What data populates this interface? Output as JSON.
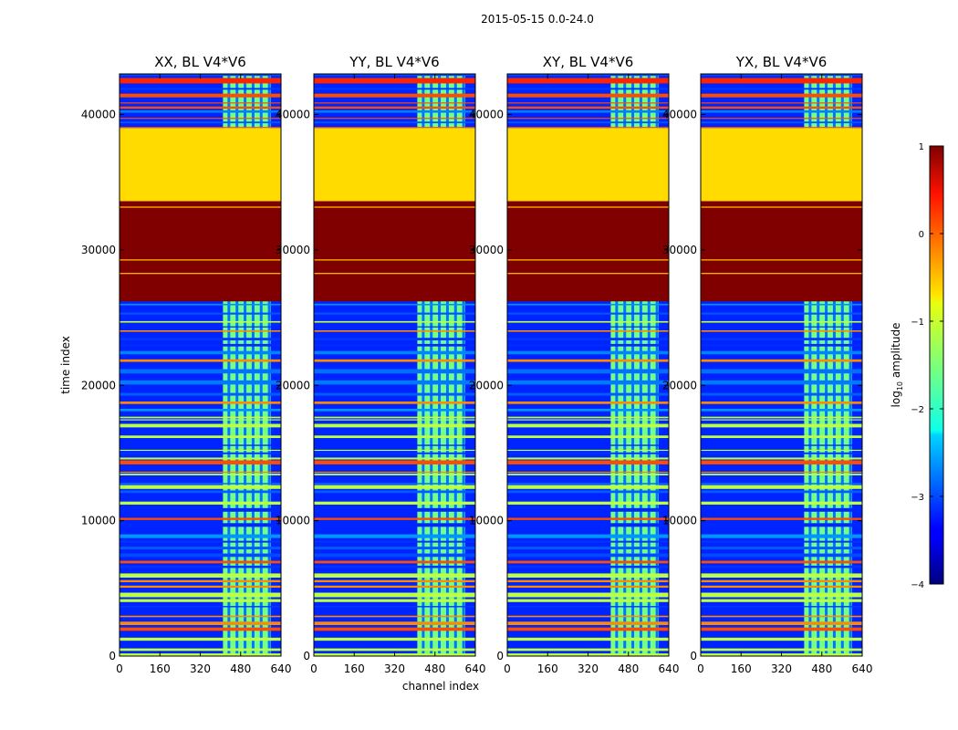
{
  "chart_data": {
    "type": "heatmap",
    "suptitle": "2015-05-15 0.0-24.0",
    "xlabel": "channel index",
    "ylabel": "time index",
    "xlim": [
      0,
      640
    ],
    "ylim": [
      0,
      43000
    ],
    "xticks": [
      "0",
      "160",
      "320",
      "480",
      "640"
    ],
    "xtick_values": [
      0,
      160,
      320,
      480,
      640
    ],
    "yticks": [
      "0",
      "10000",
      "20000",
      "30000",
      "40000"
    ],
    "ytick_values": [
      0,
      10000,
      20000,
      30000,
      40000
    ],
    "panels": [
      {
        "title": "XX, BL V4*V6",
        "polarization": "XX"
      },
      {
        "title": "YY, BL V4*V6",
        "polarization": "YY"
      },
      {
        "title": "XY, BL V4*V6",
        "polarization": "XY"
      },
      {
        "title": "YX, BL V4*V6",
        "polarization": "YX"
      }
    ],
    "colorbar": {
      "label": "log10 amplitude",
      "label_main": "log",
      "label_sub": "10",
      "label_rest": " amplitude",
      "range": [
        -4,
        1
      ],
      "ticks": [
        "1",
        "0",
        "−1",
        "−2",
        "−3",
        "−4"
      ],
      "tick_values": [
        1,
        0,
        -1,
        -2,
        -3,
        -4
      ],
      "colormap": "jet"
    },
    "features": {
      "rfi_band_channels": [
        410,
        600
      ],
      "flagged_high_rows": [
        26200,
        33600
      ],
      "flagged_mid_rows": [
        33600,
        39000
      ],
      "high_level": 1,
      "mid_level": -0.7,
      "background_level": -3.2
    }
  }
}
